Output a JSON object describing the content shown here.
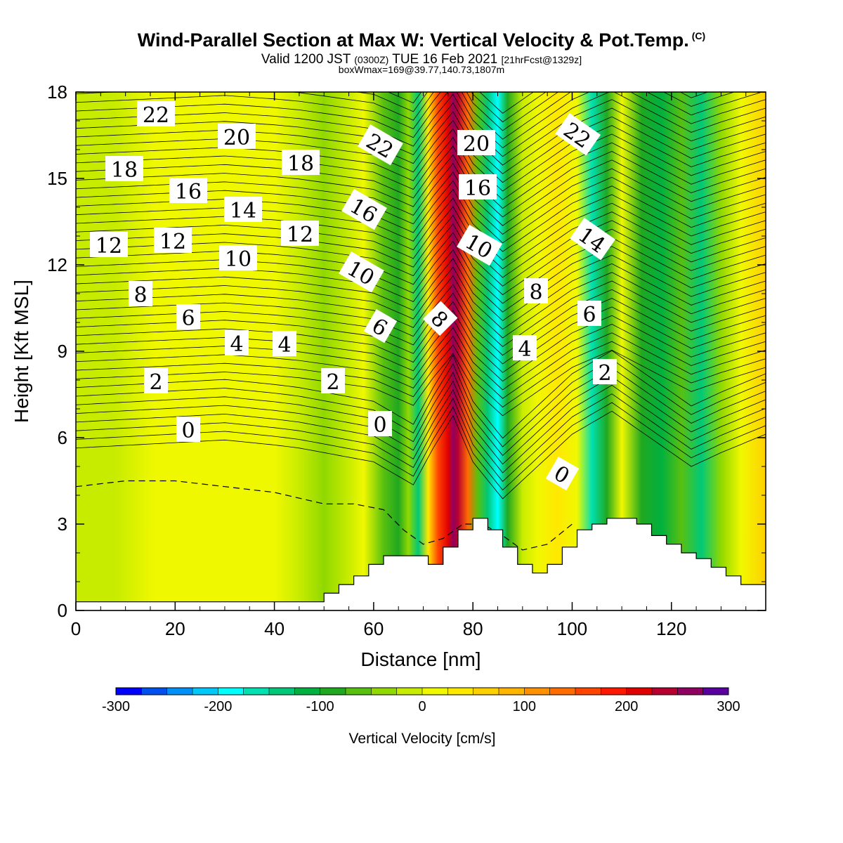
{
  "header": {
    "title": "Wind-Parallel Section at Max W: Vertical Velocity & Pot.Temp.",
    "copyright_mark": "(C)",
    "valid_prefix": "Valid 1200 JST",
    "valid_utc": "(0300Z)",
    "valid_date": "TUE 16 Feb 2021",
    "forecast_info": "[21hrFcst@1329z]",
    "box_info": "boxWmax=169@39.77,140.73,1807m"
  },
  "chart_data": {
    "type": "heatmap",
    "xlabel": "Distance [nm]",
    "ylabel": "Height [Kft MSL]",
    "xlim": [
      0,
      139
    ],
    "ylim": [
      0,
      18
    ],
    "x_ticks": [
      0,
      20,
      40,
      60,
      80,
      100,
      120
    ],
    "y_ticks": [
      0,
      3,
      6,
      9,
      12,
      15,
      18
    ],
    "colorbar": {
      "title": "Vertical Velocity [cm/s]",
      "min": -300,
      "max": 300,
      "step": 25,
      "tick_values": [
        -300,
        -200,
        -100,
        0,
        100,
        200,
        300
      ],
      "tick_labels": [
        "-300",
        "-200",
        "-100",
        "0",
        "100",
        "200",
        "300"
      ],
      "colors": [
        "#0000ff",
        "#0050f0",
        "#0090f8",
        "#00c8f8",
        "#00ffff",
        "#00e0b0",
        "#00c878",
        "#00b040",
        "#20a820",
        "#58c010",
        "#90d800",
        "#c8ec00",
        "#f0f800",
        "#ffe800",
        "#ffd000",
        "#ffb400",
        "#ff9000",
        "#ff6c00",
        "#ff4400",
        "#ff1800",
        "#e00000",
        "#b80030",
        "#900060",
        "#5a00a0"
      ]
    },
    "w_profile": {
      "x": [
        0,
        8,
        16,
        25,
        35,
        40,
        45,
        50,
        55,
        58,
        62,
        65,
        67,
        69,
        71,
        73,
        75,
        76,
        77,
        79,
        81,
        83,
        85,
        87,
        90,
        93,
        97,
        101,
        104,
        107,
        110,
        114,
        118,
        122,
        126,
        130,
        134,
        139
      ],
      "w": [
        -5,
        -20,
        5,
        10,
        5,
        0,
        -15,
        -35,
        -20,
        20,
        -60,
        -80,
        -40,
        -130,
        40,
        150,
        220,
        260,
        240,
        130,
        -60,
        -140,
        -200,
        -100,
        -20,
        20,
        40,
        0,
        -160,
        -80,
        0,
        -80,
        -120,
        -60,
        -130,
        -40,
        20,
        60
      ]
    },
    "theta_contour_labels": [
      "22",
      "20",
      "18",
      "16",
      "14",
      "12",
      "10",
      "8",
      "6",
      "4",
      "2",
      "0"
    ],
    "terrain": {
      "x": [
        0,
        48,
        50,
        53,
        56,
        59,
        62,
        65,
        68,
        71,
        74,
        77,
        80,
        83,
        86,
        89,
        92,
        95,
        98,
        101,
        104,
        107,
        110,
        113,
        116,
        119,
        122,
        125,
        128,
        131,
        134,
        139
      ],
      "height": [
        0.3,
        0.3,
        0.6,
        0.9,
        1.2,
        1.6,
        1.9,
        1.9,
        1.9,
        1.6,
        2.2,
        2.8,
        3.2,
        2.8,
        2.2,
        1.6,
        1.3,
        1.6,
        2.2,
        2.8,
        3.0,
        3.2,
        3.2,
        3.0,
        2.6,
        2.3,
        2.0,
        1.8,
        1.5,
        1.2,
        0.9,
        0.6
      ]
    },
    "freezing_level": {
      "x": [
        0,
        10,
        20,
        30,
        40,
        50,
        56,
        62,
        66,
        70,
        74,
        78,
        82,
        86,
        90,
        95,
        100,
        105,
        110
      ],
      "height": [
        4.3,
        4.5,
        4.5,
        4.3,
        4.1,
        3.7,
        3.7,
        3.5,
        2.8,
        2.3,
        2.5,
        3.0,
        3.0,
        2.6,
        2.1,
        2.3,
        3.0,
        null,
        null
      ]
    }
  }
}
